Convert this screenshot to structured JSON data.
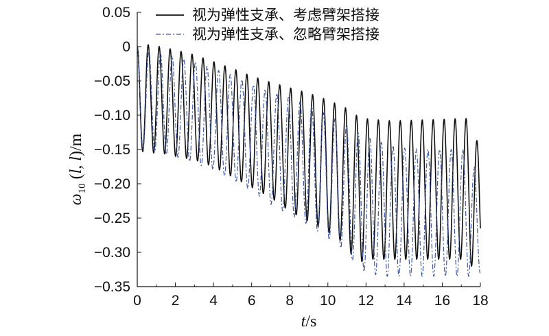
{
  "chart_data": {
    "type": "line",
    "xlabel": "t/s",
    "ylabel": "ω10 (l, l)/m",
    "xlim": [
      0,
      18
    ],
    "ylim": [
      -0.35,
      0.05
    ],
    "x_ticks": [
      0,
      2,
      4,
      6,
      8,
      10,
      12,
      14,
      16,
      18
    ],
    "y_ticks": [
      0.05,
      0,
      -0.05,
      -0.1,
      -0.15,
      -0.2,
      -0.25,
      -0.3,
      -0.35
    ],
    "x_tick_labels": [
      "0",
      "2",
      "4",
      "6",
      "8",
      "10",
      "12",
      "14",
      "16",
      "18"
    ],
    "y_tick_labels": [
      "0.05",
      "0",
      "−0.05",
      "−0.10",
      "−0.15",
      "−0.20",
      "−0.25",
      "−0.30",
      "−0.35"
    ],
    "grid": false,
    "legend_position": "top-right",
    "series": [
      {
        "name": "视为弹性支承、考虑臂架搭接",
        "style": "solid",
        "color": "#111111",
        "period": 0.575,
        "envelope_t": [
          0,
          0.5,
          1.2,
          2,
          3,
          4,
          5,
          6,
          7,
          8,
          9,
          10,
          11,
          11.5,
          12,
          13,
          14,
          15,
          16,
          17,
          17.5,
          18
        ],
        "max": [
          0,
          0.003,
          0.0,
          -0.005,
          -0.012,
          -0.022,
          -0.032,
          -0.043,
          -0.052,
          -0.06,
          -0.068,
          -0.078,
          -0.09,
          -0.1,
          -0.105,
          -0.108,
          -0.108,
          -0.107,
          -0.106,
          -0.105,
          -0.105,
          -0.155
        ],
        "min": [
          -0.15,
          -0.155,
          -0.155,
          -0.16,
          -0.165,
          -0.175,
          -0.19,
          -0.205,
          -0.22,
          -0.24,
          -0.255,
          -0.27,
          -0.29,
          -0.318,
          -0.31,
          -0.31,
          -0.31,
          -0.31,
          -0.31,
          -0.31,
          -0.32,
          -0.32
        ]
      },
      {
        "name": "视为弹性支承、忽略臂架搭接",
        "style": "dash-dot",
        "color": "#3a55a8",
        "period": 0.61,
        "envelope_t": [
          0,
          0.5,
          1.2,
          2,
          3,
          4,
          5,
          6,
          7,
          8,
          9,
          10,
          11,
          11.5,
          12,
          13,
          14,
          15,
          16,
          17,
          17.5,
          18
        ],
        "max": [
          0,
          -0.005,
          -0.01,
          -0.015,
          -0.022,
          -0.032,
          -0.042,
          -0.055,
          -0.065,
          -0.075,
          -0.085,
          -0.1,
          -0.115,
          -0.125,
          -0.13,
          -0.142,
          -0.148,
          -0.15,
          -0.15,
          -0.15,
          -0.15,
          -0.22
        ],
        "min": [
          -0.15,
          -0.15,
          -0.155,
          -0.16,
          -0.17,
          -0.18,
          -0.195,
          -0.21,
          -0.23,
          -0.245,
          -0.26,
          -0.28,
          -0.3,
          -0.32,
          -0.33,
          -0.335,
          -0.335,
          -0.335,
          -0.335,
          -0.335,
          -0.335,
          -0.33
        ]
      }
    ]
  }
}
